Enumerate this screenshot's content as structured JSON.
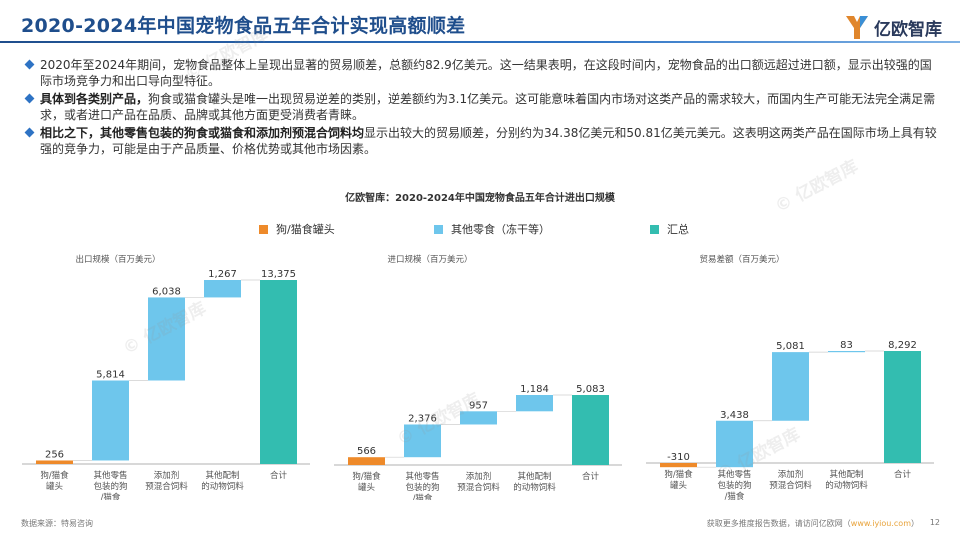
{
  "header": {
    "title": "2020-2024年中国宠物食品五年合计实现高额顺差",
    "logo_text": "亿欧智库"
  },
  "bullets": [
    {
      "lead": "",
      "text": "2020年至2024年期间，宠物食品整体上呈现出显著的贸易顺差，总额约82.9亿美元。这一结果表明，在这段时间内，宠物食品的出口额远超过进口额，显示出较强的国际市场竞争力和出口导向型特征。"
    },
    {
      "lead": "具体到各类别产品，",
      "text": "狗食或猫食罐头是唯一出现贸易逆差的类别，逆差额约为3.1亿美元。这可能意味着国内市场对这类产品的需求较大，而国内生产可能无法完全满足需求，或者进口产品在品质、品牌或其他方面更受消费者青睐。"
    },
    {
      "lead": "相比之下，其他零售包装的狗食或猫食和添加剂预混合饲料均",
      "text": "显示出较大的贸易顺差，分别约为34.38亿美元和50.81亿美元美元。这表明这两类产品在国际市场上具有较强的竞争力，可能是由于产品质量、价格优势或其他市场因素。"
    }
  ],
  "chart_title": "亿欧智库：2020-2024年中国宠物食品五年合计进出口规模",
  "legend": [
    {
      "name": "狗/猫食罐头",
      "color": "#ee8a2a"
    },
    {
      "name": "其他零食（冻干等）",
      "color": "#6ec6ec"
    },
    {
      "name": "汇总",
      "color": "#33bdb0"
    }
  ],
  "chart_data": [
    {
      "type": "bar",
      "subtype": "waterfall",
      "title": "出口规模（百万美元）",
      "categories": [
        [
          "狗/猫食",
          "罐头"
        ],
        [
          "其他零售",
          "包装的狗",
          "/猫食"
        ],
        [
          "添加剂",
          "预混合饲料"
        ],
        [
          "其他配制",
          "的动物饲料"
        ],
        [
          "合计"
        ]
      ],
      "values": [
        256,
        5814,
        6038,
        1267,
        13375
      ],
      "labels": [
        "256",
        "5,814",
        "6,038",
        "1,267",
        "13,375"
      ],
      "ylim": [
        0,
        13375
      ]
    },
    {
      "type": "bar",
      "subtype": "waterfall",
      "title": "进口规模（百万美元）",
      "categories": [
        [
          "狗/猫食",
          "罐头"
        ],
        [
          "其他零售",
          "包装的狗",
          "/猫食"
        ],
        [
          "添加剂",
          "预混合饲料"
        ],
        [
          "其他配制",
          "的动物饲料"
        ],
        [
          "合计"
        ]
      ],
      "values": [
        566,
        2376,
        957,
        1184,
        5083
      ],
      "labels": [
        "566",
        "2,376",
        "957",
        "1,184",
        "5,083"
      ],
      "ylim": [
        0,
        5083
      ]
    },
    {
      "type": "bar",
      "subtype": "waterfall",
      "title": "贸易差额（百万美元）",
      "categories": [
        [
          "狗/猫食",
          "罐头"
        ],
        [
          "其他零售",
          "包装的狗",
          "/猫食"
        ],
        [
          "添加剂",
          "预混合饲料"
        ],
        [
          "其他配制",
          "的动物饲料"
        ],
        [
          "合计"
        ]
      ],
      "values": [
        -310,
        3438,
        5081,
        83,
        8292
      ],
      "labels": [
        "-310",
        "3,438",
        "5,081",
        "83",
        "8,292"
      ],
      "ylim": [
        -310,
        8292
      ]
    }
  ],
  "footer": {
    "source": "数据来源：特易咨询",
    "more_prefix": "获取更多推度报告数据，请访问亿欧网（",
    "more_link": "www.iyiou.com",
    "more_suffix": "）",
    "page": "12"
  },
  "watermark_text": "© 亿欧智库"
}
